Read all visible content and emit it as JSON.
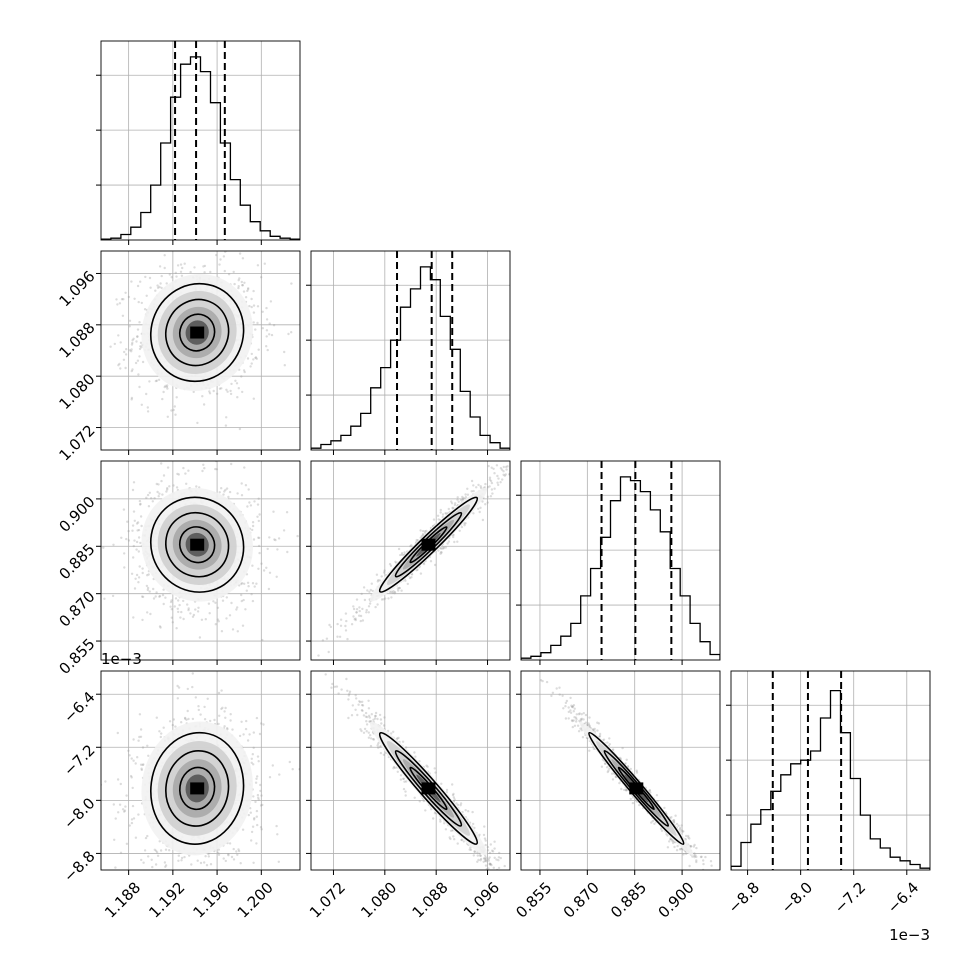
{
  "chart_data": {
    "type": "corner",
    "params": [
      {
        "range": [
          1.1855,
          1.2035
        ],
        "ticks": [
          "1.188",
          "1.192",
          "1.196",
          "1.200"
        ],
        "tick_values": [
          1.188,
          1.192,
          1.196,
          1.2
        ],
        "quantiles": [
          1.1922,
          1.1941,
          1.1967
        ],
        "mean": 1.1942,
        "sd": 0.0021
      },
      {
        "range": [
          1.0685,
          1.0995
        ],
        "ticks": [
          "1.072",
          "1.080",
          "1.088",
          "1.096"
        ],
        "tick_values": [
          1.072,
          1.08,
          1.088,
          1.096
        ],
        "quantiles": [
          1.0819,
          1.0873,
          1.0905
        ],
        "mean": 1.0868,
        "sd": 0.0038
      },
      {
        "range": [
          0.849,
          0.912
        ],
        "ticks": [
          "0.855",
          "0.870",
          "0.885",
          "0.900"
        ],
        "tick_values": [
          0.855,
          0.87,
          0.885,
          0.9
        ],
        "quantiles": [
          0.8745,
          0.8852,
          0.8966
        ],
        "mean": 0.8855,
        "sd": 0.0075
      },
      {
        "range": [
          -9.05,
          -6.05
        ],
        "ticks": [
          "−8.8",
          "−8.0",
          "−7.2",
          "−6.4"
        ],
        "tick_values": [
          -8.8,
          -8.0,
          -7.2,
          -6.4
        ],
        "quantiles": [
          -8.42,
          -7.89,
          -7.39
        ],
        "mean": -7.82,
        "sd": 0.42,
        "scale_label": "1e−3"
      }
    ],
    "correlations": [
      [
        1,
        0.05,
        -0.05,
        0.05
      ],
      [
        0.05,
        1,
        0.97,
        -0.97
      ],
      [
        -0.05,
        0.97,
        1,
        -0.985
      ],
      [
        0.05,
        -0.97,
        -0.985,
        1
      ]
    ],
    "histograms": [
      [
        0.005,
        0.01,
        0.03,
        0.07,
        0.15,
        0.3,
        0.53,
        0.78,
        0.96,
        1.0,
        0.92,
        0.75,
        0.53,
        0.33,
        0.19,
        0.1,
        0.05,
        0.02,
        0.01,
        0.005
      ],
      [
        0.01,
        0.03,
        0.05,
        0.08,
        0.13,
        0.2,
        0.34,
        0.45,
        0.6,
        0.78,
        0.88,
        1.0,
        0.93,
        0.73,
        0.55,
        0.32,
        0.18,
        0.08,
        0.04,
        0.01
      ],
      [
        0.01,
        0.02,
        0.04,
        0.08,
        0.13,
        0.2,
        0.35,
        0.5,
        0.67,
        0.87,
        1.0,
        0.98,
        0.92,
        0.82,
        0.7,
        0.5,
        0.35,
        0.2,
        0.1,
        0.03
      ],
      [
        0.02,
        0.15,
        0.25,
        0.33,
        0.43,
        0.52,
        0.58,
        0.6,
        0.65,
        0.83,
        0.98,
        0.75,
        0.5,
        0.3,
        0.17,
        0.12,
        0.07,
        0.05,
        0.03,
        0.01
      ]
    ],
    "grid": true,
    "scale_labels": {
      "row3_y": "1e−3",
      "col3_x": "1e−3"
    }
  }
}
